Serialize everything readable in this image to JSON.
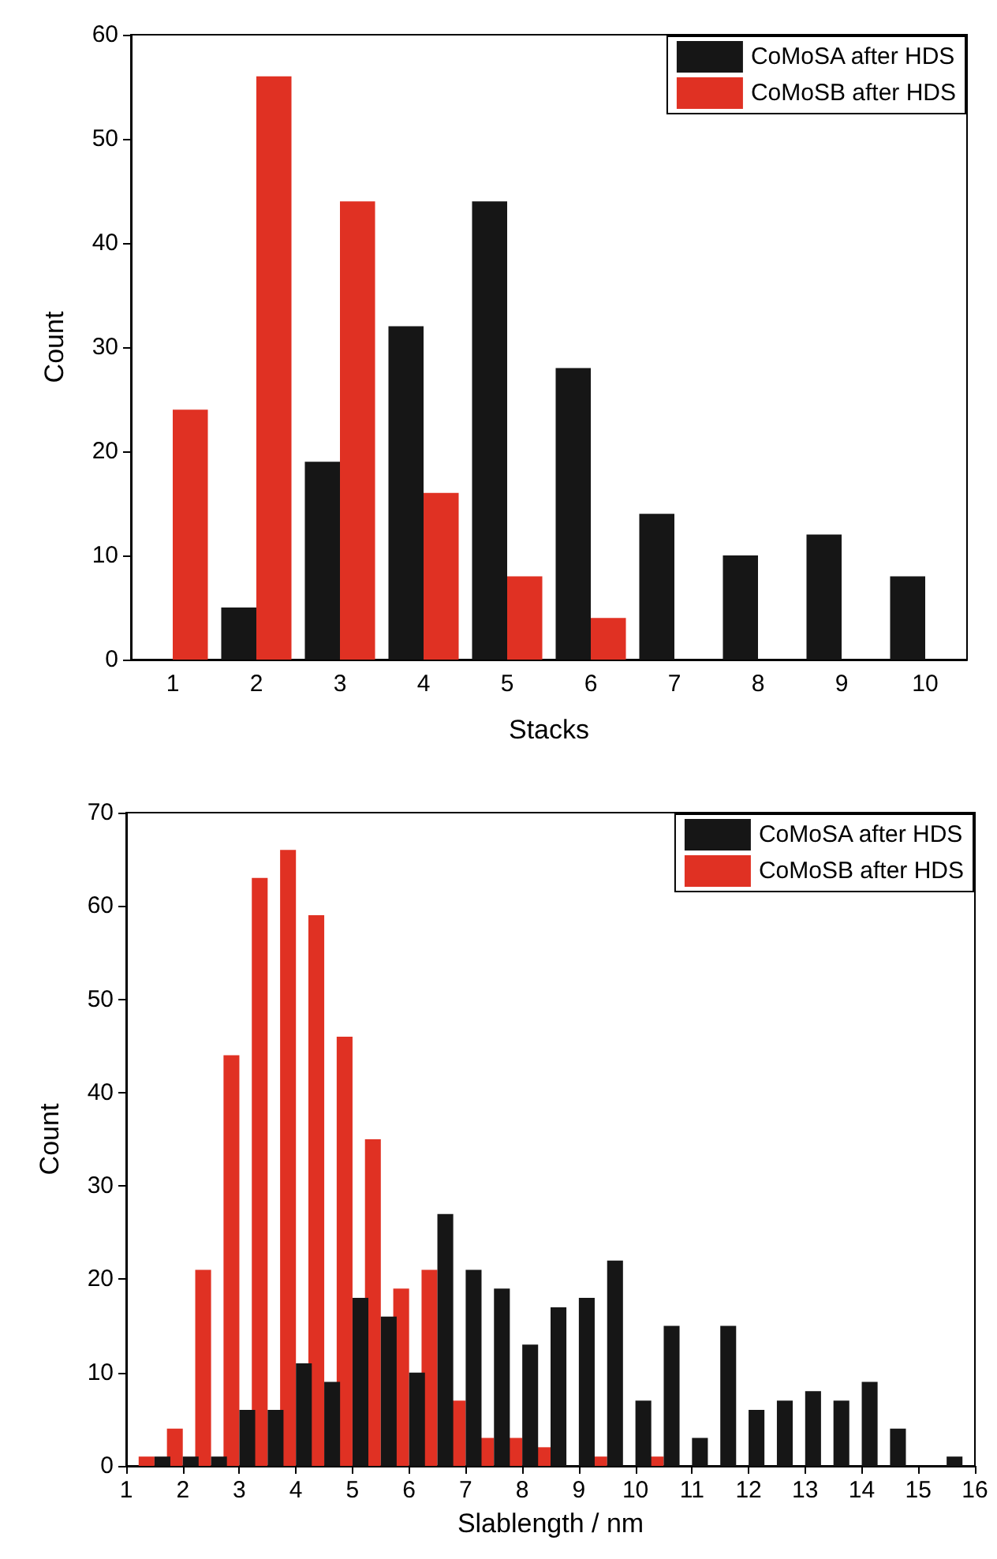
{
  "chart_data": [
    {
      "type": "bar",
      "xlabel": "Stacks",
      "ylabel": "Count",
      "categories": [
        "1",
        "2",
        "3",
        "4",
        "5",
        "6",
        "7",
        "8",
        "9",
        "10"
      ],
      "ylim": [
        0,
        60
      ],
      "yticks": [
        0,
        10,
        20,
        30,
        40,
        50,
        60
      ],
      "legend": "top right",
      "grid": false,
      "series": [
        {
          "name": "CoMoSA after HDS",
          "color": "#161616",
          "values": [
            0,
            5,
            19,
            32,
            44,
            28,
            14,
            10,
            12,
            8
          ]
        },
        {
          "name": "CoMoSB after HDS",
          "color": "#e03123",
          "values": [
            24,
            56,
            44,
            16,
            8,
            4,
            0,
            0,
            0,
            0
          ]
        }
      ]
    },
    {
      "type": "bar",
      "xlabel": "Slablength / nm",
      "ylabel": "Count",
      "x": [
        1.5,
        2,
        2.5,
        3,
        3.5,
        4,
        4.5,
        5,
        5.5,
        6,
        6.5,
        7,
        7.5,
        8,
        8.5,
        9,
        9.5,
        10,
        10.5,
        11,
        11.5,
        12,
        12.5,
        13,
        13.5,
        14,
        14.5,
        15,
        15.5
      ],
      "xlim": [
        1,
        16
      ],
      "xticks": [
        1,
        2,
        3,
        4,
        5,
        6,
        7,
        8,
        9,
        10,
        11,
        12,
        13,
        14,
        15,
        16
      ],
      "ylim": [
        0,
        70
      ],
      "yticks": [
        0,
        10,
        20,
        30,
        40,
        50,
        60,
        70
      ],
      "legend": "top right",
      "grid": false,
      "series": [
        {
          "name": "CoMoSA after HDS",
          "color": "#161616",
          "values": [
            1,
            1,
            1,
            6,
            6,
            11,
            9,
            18,
            16,
            10,
            27,
            21,
            19,
            13,
            17,
            18,
            22,
            7,
            15,
            3,
            15,
            6,
            7,
            8,
            7,
            9,
            4,
            0,
            1
          ]
        },
        {
          "name": "CoMoSB after HDS",
          "color": "#e03123",
          "values": [
            1,
            4,
            21,
            44,
            63,
            66,
            59,
            46,
            35,
            19,
            21,
            7,
            3,
            3,
            2,
            0,
            1,
            0,
            1,
            0,
            0,
            0,
            0,
            0,
            0,
            0,
            0,
            0,
            0
          ]
        }
      ]
    }
  ]
}
